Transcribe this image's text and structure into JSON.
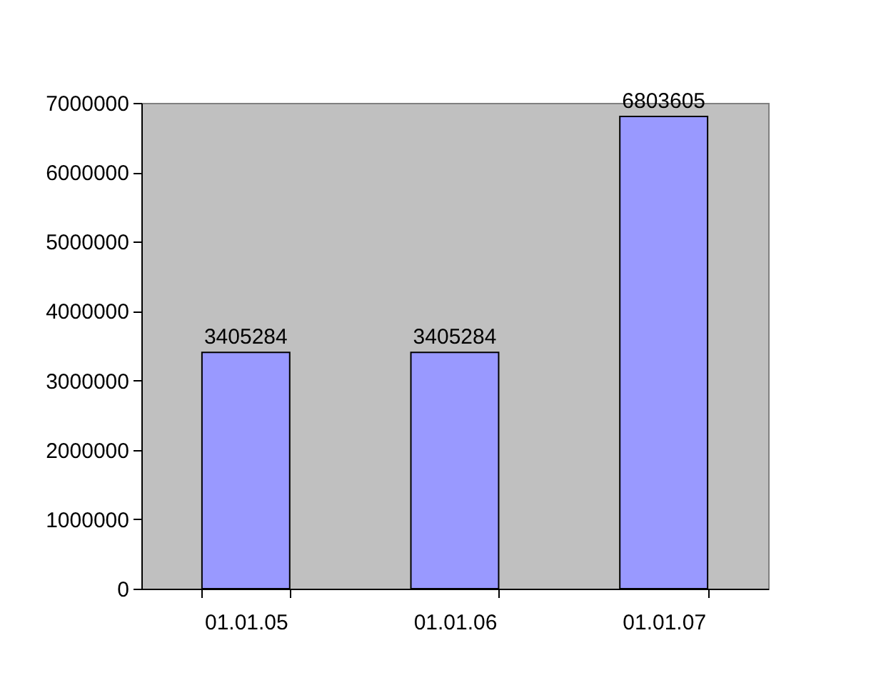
{
  "chart_data": {
    "type": "bar",
    "categories": [
      "01.01.05",
      "01.01.06",
      "01.01.07"
    ],
    "values": [
      3405284,
      3405284,
      6803605
    ],
    "color": "#9999ff",
    "ylim": [
      0,
      7000000
    ],
    "yticks": [
      0,
      1000000,
      2000000,
      3000000,
      4000000,
      5000000,
      6000000,
      7000000
    ],
    "data_labels": true
  }
}
